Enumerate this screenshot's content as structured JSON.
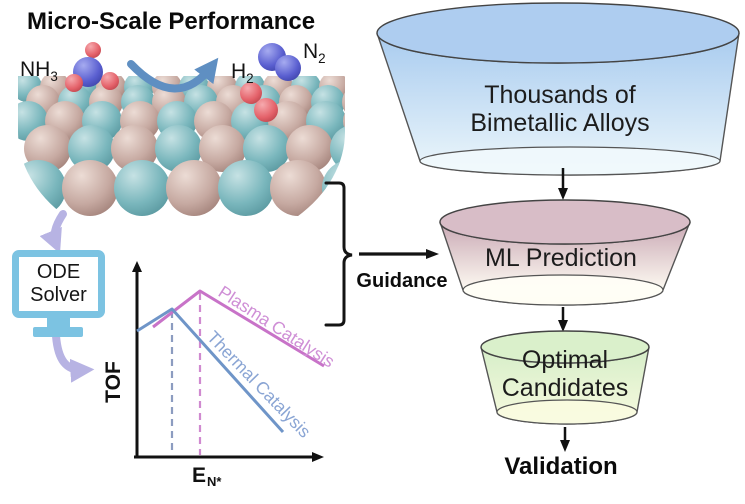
{
  "title": "Micro-Scale Performance",
  "reaction": {
    "nh3": {
      "base": "NH",
      "sub": "3"
    },
    "h2": {
      "base": "H",
      "sub": "2"
    },
    "n2": {
      "base": "N",
      "sub": "2"
    }
  },
  "ode_solver": {
    "line1": "ODE",
    "line2": "Solver"
  },
  "plot": {
    "ylabel": "TOF",
    "xlabel_base": "E",
    "xlabel_sub": "N*",
    "series": [
      {
        "name": "Plasma Catalysis",
        "color": "#c873c8"
      },
      {
        "name": "Thermal Catalysis",
        "color": "#7b9cd0"
      }
    ]
  },
  "chart_data": {
    "type": "line",
    "title": "",
    "xlabel": "E_N*",
    "ylabel": "TOF",
    "axes_quantitative": false,
    "series": [
      {
        "name": "Plasma Catalysis",
        "color": "#c873c8",
        "shape": "volcano",
        "points_rel": [
          [
            0.12,
            0.7
          ],
          [
            0.37,
            0.9
          ],
          [
            1.0,
            0.49
          ]
        ],
        "peak_x_rel": 0.37
      },
      {
        "name": "Thermal Catalysis",
        "color": "#7b9cd0",
        "shape": "volcano",
        "points_rel": [
          [
            0.02,
            0.68
          ],
          [
            0.21,
            0.8
          ],
          [
            0.82,
            0.13
          ]
        ],
        "peak_x_rel": 0.21
      }
    ],
    "annotations": [
      "dashed vertical guide from each volcano peak to the x-axis"
    ],
    "legend_position": "labels along curves"
  },
  "guidance": {
    "label": "Guidance"
  },
  "funnel": {
    "stages": [
      {
        "lines": [
          "Thousands of",
          "Bimetallic Alloys"
        ],
        "top_color": "#aecdf0",
        "body_top": "#a8cbef",
        "body_bottom": "#edf7fb"
      },
      {
        "lines": [
          "ML Prediction"
        ],
        "top_color": "#d8bdc7",
        "body_top": "#c9a8b4",
        "body_bottom": "#fffdf4"
      },
      {
        "lines": [
          "Optimal",
          "Candidates"
        ],
        "top_color": "#daf0cb",
        "body_top": "#d5edc8",
        "body_bottom": "#f8fbdf"
      }
    ],
    "final_label": "Validation"
  },
  "colors": {
    "teal_atom": "#79b6bc",
    "tan_atom": "#c6a9a1",
    "n_atom_blue": "#5a5fd0",
    "h_atom_red": "#e4626a",
    "reaction_arrow_blue": "#5f8fc2",
    "flow_arrow_purple": "#b7b3e3",
    "monitor_blue": "#7cc3e2",
    "plasma_pink": "#c873c8",
    "thermal_blue": "#7b9cd0",
    "text_black": "#111111"
  }
}
